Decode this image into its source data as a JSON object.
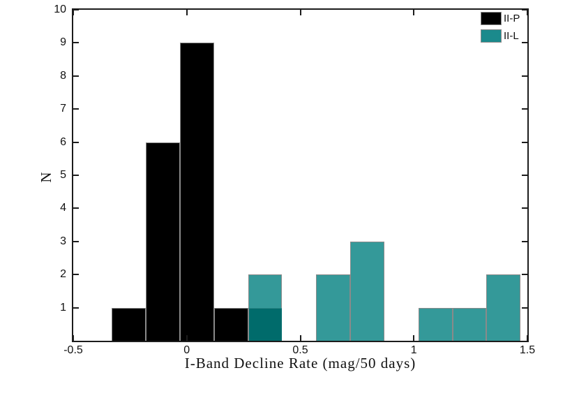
{
  "chart_data": {
    "type": "bar",
    "subtype": "overlaid-histogram",
    "title": "",
    "xlabel": "I-Band Decline Rate (mag/50 days)",
    "ylabel": "N",
    "xlim": [
      -0.5,
      1.5
    ],
    "ylim": [
      0,
      10
    ],
    "grid": false,
    "frame_box": true,
    "bin_width": 0.15,
    "xticks": [
      -0.5,
      0,
      0.5,
      1,
      1.5
    ],
    "xtick_labels": [
      "-0.5",
      "0",
      "0.5",
      "1",
      "1.5"
    ],
    "yticks": [
      1,
      2,
      3,
      4,
      5,
      6,
      7,
      8,
      9,
      10
    ],
    "ytick_labels": [
      "1",
      "2",
      "3",
      "4",
      "5",
      "6",
      "7",
      "8",
      "9",
      "10"
    ],
    "series": [
      {
        "name": "II-P",
        "color": "#000000",
        "edge_color": "#8a8a8a",
        "bars": [
          {
            "x0": -0.33,
            "x1": -0.18,
            "h": 1
          },
          {
            "x0": -0.18,
            "x1": -0.03,
            "h": 6
          },
          {
            "x0": -0.03,
            "x1": 0.12,
            "h": 9
          },
          {
            "x0": 0.12,
            "x1": 0.27,
            "h": 1
          },
          {
            "x0": 0.27,
            "x1": 0.42,
            "h": 1
          }
        ]
      },
      {
        "name": "II-L",
        "color": "#349999",
        "edge_color": "#8a8a8a",
        "bars": [
          {
            "x0": 0.27,
            "x1": 0.42,
            "h": 2
          },
          {
            "x0": 0.57,
            "x1": 0.72,
            "h": 2
          },
          {
            "x0": 0.72,
            "x1": 0.87,
            "h": 3
          },
          {
            "x0": 1.02,
            "x1": 1.17,
            "h": 1
          },
          {
            "x0": 1.17,
            "x1": 1.32,
            "h": 1
          },
          {
            "x0": 1.32,
            "x1": 1.47,
            "h": 2
          }
        ]
      }
    ],
    "overlap": {
      "color": "#006b6b",
      "note": "region where II-P and II-L histograms overlap",
      "bars": [
        {
          "x0": 0.27,
          "x1": 0.42,
          "h": 1
        }
      ]
    },
    "legend": {
      "position": "top-right",
      "entries": [
        {
          "label": "II-P",
          "color": "#000000"
        },
        {
          "label": "II-L",
          "color": "#1b8a8c"
        }
      ]
    },
    "colors": {
      "axis": "#1c1c1c",
      "text": "#111111",
      "background": "#ffffff"
    }
  }
}
